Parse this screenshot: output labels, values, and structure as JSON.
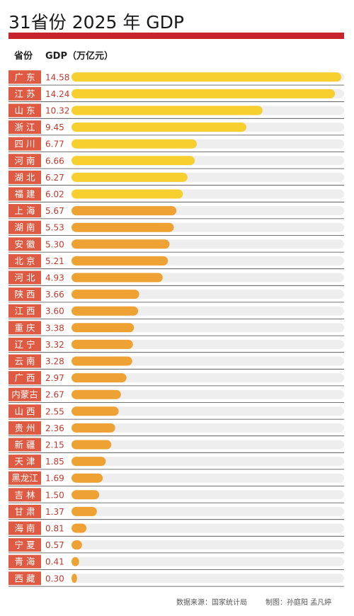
{
  "title": "31省份 2025 年 GDP",
  "header": {
    "province_label": "省份",
    "gdp_label": "GDP（万亿元）"
  },
  "footer": {
    "source": "数据来源：国家统计局",
    "credit": "制图：孙庭阳  孟凡婷"
  },
  "colors": {
    "accent_red": "#c8242b",
    "label_red": "#df5a43",
    "value_red": "#c0392b",
    "bar_yellow": "#f7cf2e",
    "bar_orange": "#eda233",
    "track_gray": "#eeeeee"
  },
  "chart_data": {
    "type": "bar",
    "orientation": "horizontal",
    "title": "31省份 2025 年 GDP",
    "ylabel": "省份",
    "xlabel": "GDP（万亿元）",
    "xlim": [
      0,
      14.58
    ],
    "grid": false,
    "categories": [
      "广 东",
      "江 苏",
      "山 东",
      "浙 江",
      "四 川",
      "河 南",
      "湖 北",
      "福 建",
      "上 海",
      "湖 南",
      "安 徽",
      "北 京",
      "河 北",
      "陕 西",
      "江 西",
      "重 庆",
      "辽 宁",
      "云 南",
      "广 西",
      "内蒙古",
      "山 西",
      "贵 州",
      "新 疆",
      "天 津",
      "黑龙江",
      "吉 林",
      "甘 肃",
      "海 南",
      "宁 夏",
      "青 海",
      "西 藏"
    ],
    "values": [
      14.58,
      14.24,
      10.32,
      9.45,
      6.77,
      6.66,
      6.27,
      6.02,
      5.67,
      5.53,
      5.3,
      5.21,
      4.93,
      3.66,
      3.6,
      3.38,
      3.32,
      3.28,
      2.97,
      2.67,
      2.55,
      2.36,
      2.15,
      1.85,
      1.69,
      1.5,
      1.37,
      0.81,
      0.57,
      0.41,
      0.3
    ],
    "value_labels": [
      "14.58",
      "14.24",
      "10.32",
      "9.45",
      "6.77",
      "6.66",
      "6.27",
      "6.02",
      "5.67",
      "5.53",
      "5.30",
      "5.21",
      "4.93",
      "3.66",
      "3.60",
      "3.38",
      "3.32",
      "3.28",
      "2.97",
      "2.67",
      "2.55",
      "2.36",
      "2.15",
      "1.85",
      "1.69",
      "1.50",
      "1.37",
      "0.81",
      "0.57",
      "0.41",
      "0.30"
    ]
  }
}
